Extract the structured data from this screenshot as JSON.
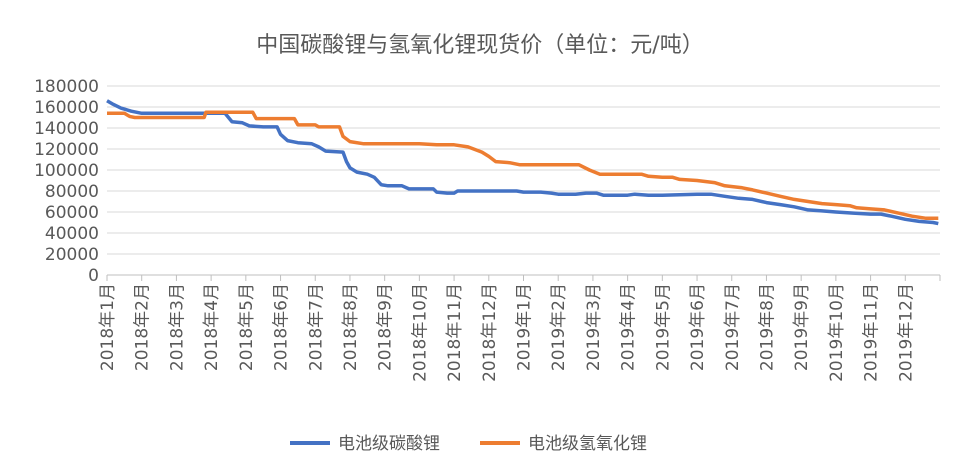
{
  "chart_data": {
    "type": "line",
    "title": "中国碳酸锂与氢氧化锂现货价（单位：元/吨）",
    "xlabel": "",
    "ylabel": "",
    "ylim": [
      0,
      180000
    ],
    "yticks": [
      "180000",
      "160000",
      "140000",
      "120000",
      "100000",
      "80000",
      "60000",
      "40000",
      "20000",
      "0"
    ],
    "categories": [
      "2018年1月",
      "2018年2月",
      "2018年3月",
      "2018年4月",
      "2018年5月",
      "2018年6月",
      "2018年7月",
      "2018年8月",
      "2018年9月",
      "2018年10月",
      "2018年11月",
      "2018年12月",
      "2019年1月",
      "2019年2月",
      "2019年3月",
      "2019年4月",
      "2019年5月",
      "2019年6月",
      "2019年7月",
      "2019年8月",
      "2019年9月",
      "2019年10月",
      "2019年11月",
      "2019年12月"
    ],
    "grid": "horizontal",
    "legend_position": "bottom",
    "series": [
      {
        "name": "电池级碳酸锂",
        "color": "#4472C4",
        "points": [
          [
            0,
            166000
          ],
          [
            0.15,
            163000
          ],
          [
            0.4,
            159000
          ],
          [
            0.7,
            156000
          ],
          [
            1.0,
            154000
          ],
          [
            2.0,
            154000
          ],
          [
            3.0,
            154000
          ],
          [
            3.4,
            154000
          ],
          [
            3.5,
            150000
          ],
          [
            3.6,
            146000
          ],
          [
            3.9,
            145000
          ],
          [
            4.1,
            142000
          ],
          [
            4.5,
            141000
          ],
          [
            4.9,
            141000
          ],
          [
            5.0,
            134000
          ],
          [
            5.2,
            128000
          ],
          [
            5.5,
            126000
          ],
          [
            5.9,
            125000
          ],
          [
            6.1,
            122000
          ],
          [
            6.3,
            118000
          ],
          [
            6.8,
            117000
          ],
          [
            6.9,
            108000
          ],
          [
            7.0,
            102000
          ],
          [
            7.2,
            98000
          ],
          [
            7.5,
            96000
          ],
          [
            7.7,
            93000
          ],
          [
            7.9,
            86000
          ],
          [
            8.1,
            85000
          ],
          [
            8.5,
            85000
          ],
          [
            8.7,
            82000
          ],
          [
            9.0,
            82000
          ],
          [
            9.4,
            82000
          ],
          [
            9.5,
            79000
          ],
          [
            9.8,
            78000
          ],
          [
            10.0,
            78000
          ],
          [
            10.1,
            80000
          ],
          [
            11.0,
            80000
          ],
          [
            11.5,
            80000
          ],
          [
            11.8,
            80000
          ],
          [
            12.0,
            79000
          ],
          [
            12.5,
            79000
          ],
          [
            12.8,
            78000
          ],
          [
            13.0,
            77000
          ],
          [
            13.5,
            77000
          ],
          [
            13.8,
            78000
          ],
          [
            14.1,
            78000
          ],
          [
            14.3,
            76000
          ],
          [
            15.0,
            76000
          ],
          [
            15.2,
            77000
          ],
          [
            15.6,
            76000
          ],
          [
            16.0,
            76000
          ],
          [
            17.0,
            77000
          ],
          [
            17.4,
            77000
          ],
          [
            17.8,
            75000
          ],
          [
            18.2,
            73000
          ],
          [
            18.6,
            72000
          ],
          [
            19.0,
            69000
          ],
          [
            19.4,
            67000
          ],
          [
            19.8,
            65000
          ],
          [
            20.2,
            62000
          ],
          [
            20.6,
            61000
          ],
          [
            21.0,
            60000
          ],
          [
            21.5,
            59000
          ],
          [
            22.0,
            58000
          ],
          [
            22.3,
            58000
          ],
          [
            22.6,
            56000
          ],
          [
            23.0,
            53000
          ],
          [
            23.4,
            51000
          ],
          [
            23.8,
            50000
          ],
          [
            23.95,
            49000
          ]
        ]
      },
      {
        "name": "电池级氢氧化锂",
        "color": "#ED7D31",
        "points": [
          [
            0,
            154000
          ],
          [
            0.5,
            154000
          ],
          [
            0.65,
            151000
          ],
          [
            0.8,
            150000
          ],
          [
            1.5,
            150000
          ],
          [
            2.0,
            150000
          ],
          [
            2.8,
            150000
          ],
          [
            2.85,
            155000
          ],
          [
            3.5,
            155000
          ],
          [
            4.0,
            155000
          ],
          [
            4.2,
            155000
          ],
          [
            4.3,
            149000
          ],
          [
            5.0,
            149000
          ],
          [
            5.4,
            149000
          ],
          [
            5.5,
            143000
          ],
          [
            6.0,
            143000
          ],
          [
            6.1,
            141000
          ],
          [
            6.7,
            141000
          ],
          [
            6.8,
            132000
          ],
          [
            7.0,
            127000
          ],
          [
            7.4,
            125000
          ],
          [
            8.0,
            125000
          ],
          [
            8.5,
            125000
          ],
          [
            9.0,
            125000
          ],
          [
            9.5,
            124000
          ],
          [
            10.0,
            124000
          ],
          [
            10.4,
            122000
          ],
          [
            10.8,
            117000
          ],
          [
            11.0,
            113000
          ],
          [
            11.2,
            108000
          ],
          [
            11.6,
            107000
          ],
          [
            11.9,
            105000
          ],
          [
            12.5,
            105000
          ],
          [
            13.0,
            105000
          ],
          [
            13.6,
            105000
          ],
          [
            13.9,
            100000
          ],
          [
            14.2,
            96000
          ],
          [
            15.0,
            96000
          ],
          [
            15.4,
            96000
          ],
          [
            15.6,
            94000
          ],
          [
            16.0,
            93000
          ],
          [
            16.3,
            93000
          ],
          [
            16.5,
            91000
          ],
          [
            17.0,
            90000
          ],
          [
            17.5,
            88000
          ],
          [
            17.8,
            85000
          ],
          [
            18.3,
            83000
          ],
          [
            18.6,
            81000
          ],
          [
            19.0,
            78000
          ],
          [
            19.4,
            75000
          ],
          [
            19.8,
            72000
          ],
          [
            20.2,
            70000
          ],
          [
            20.6,
            68000
          ],
          [
            21.0,
            67000
          ],
          [
            21.4,
            66000
          ],
          [
            21.6,
            64000
          ],
          [
            22.0,
            63000
          ],
          [
            22.4,
            62000
          ],
          [
            22.8,
            59000
          ],
          [
            23.2,
            56000
          ],
          [
            23.6,
            54000
          ],
          [
            23.95,
            54000
          ]
        ]
      }
    ]
  }
}
